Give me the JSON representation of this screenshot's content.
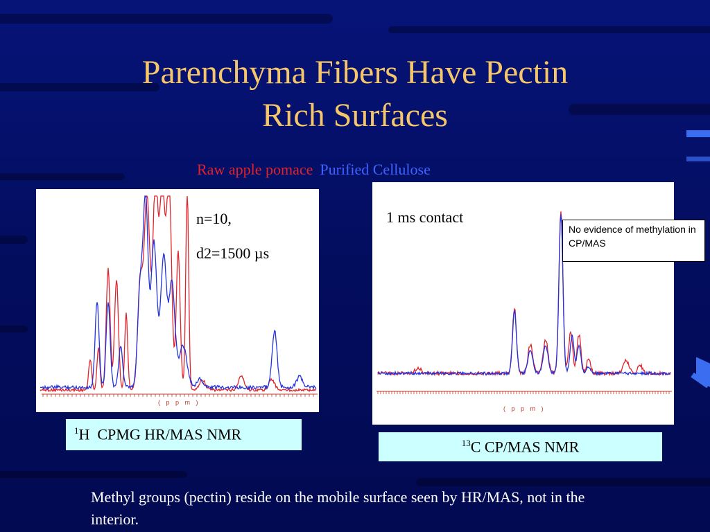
{
  "slide": {
    "title_line1": "Parenchyma Fibers Have Pectin",
    "title_line2": "Rich Surfaces",
    "legend": {
      "raw_label": "Raw apple pomace",
      "purified_label": "Purified Cellulose"
    },
    "colors": {
      "raw": "#e0242c",
      "purified": "#2233dd",
      "title": "#f5c76a",
      "background": "#04106e",
      "caption_bg": "#ccffff"
    },
    "h_panel": {
      "param_n": "n=10,",
      "param_d2": "d2=1500 µs",
      "axis_unit": "( p p m )",
      "caption_sup": "1",
      "caption_text": "H  CPMG HR/MAS NMR"
    },
    "c_panel": {
      "contact_text": "1 ms contact",
      "axis_unit": "( p p m )",
      "note": "No evidence of methylation in CP/MAS",
      "caption_sup": "13",
      "caption_text": "C CP/MAS NMR"
    },
    "footnote": "Methyl groups (pectin) reside on the mobile surface seen by HR/MAS, not in the interior."
  }
}
